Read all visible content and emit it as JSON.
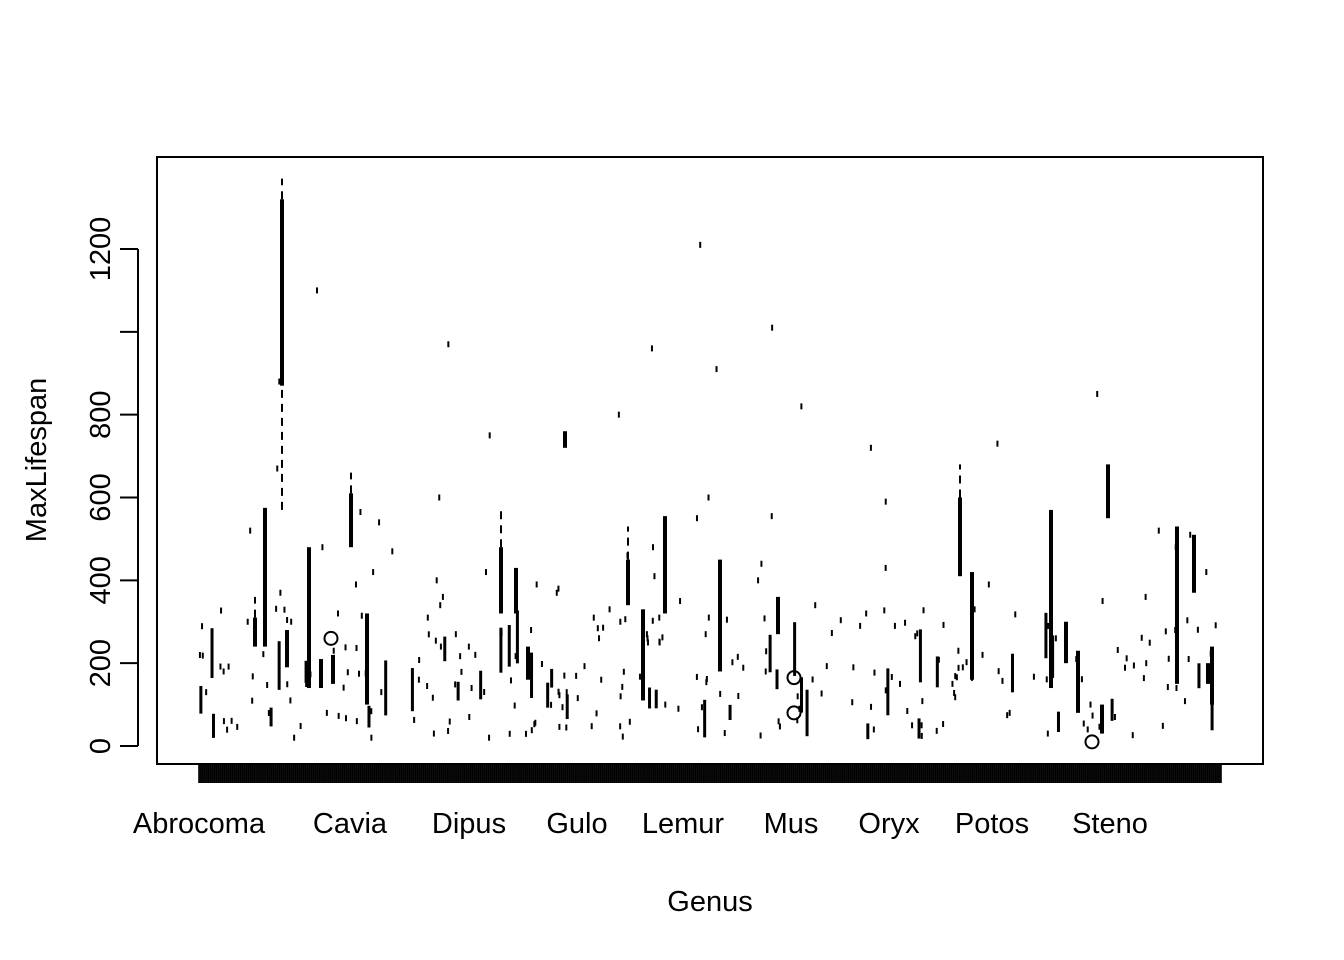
{
  "chart_data": {
    "type": "boxplot",
    "title": "",
    "xlabel": "Genus",
    "ylabel": "MaxLifespan",
    "x_tick_labels": [
      "Abrocoma",
      "Cavia",
      "Dipus",
      "Gulo",
      "Lemur",
      "Mus",
      "Oryx",
      "Potos",
      "Steno"
    ],
    "y_ticks": [
      0,
      200,
      400,
      600,
      800,
      1000,
      1200
    ],
    "y_tick_labels": [
      "0",
      "200",
      "400",
      "600",
      "800",
      "",
      "1200"
    ],
    "ylim": [
      -45,
      1420
    ],
    "grid": false,
    "legend": "none",
    "colors": {
      "ink": "#000000",
      "background": "#ffffff"
    },
    "boxes": [
      {
        "q1": 240,
        "q3": 310,
        "whisker_high": 360
      },
      {
        "q1": 240,
        "q3": 575
      },
      {
        "q1": 870,
        "q3": 1320,
        "whisker_low": 570,
        "whisker_high": 1370
      },
      {
        "q1": 190,
        "q3": 280
      },
      {
        "q1": 140,
        "q3": 480
      },
      {
        "q1": 140,
        "q3": 210
      },
      {
        "q1": 150,
        "q3": 220
      },
      {
        "q1": 480,
        "q3": 610,
        "whisker_high": 660
      },
      {
        "q1": 100,
        "q3": 320
      },
      {
        "q1": 320,
        "q3": 480,
        "whisker_high": 570
      },
      {
        "q1": 320,
        "q3": 430
      },
      {
        "q1": 160,
        "q3": 240
      },
      {
        "q1": 720,
        "q3": 760
      },
      {
        "q1": 340,
        "q3": 450,
        "whisker_high": 530
      },
      {
        "q1": 110,
        "q3": 330
      },
      {
        "q1": 320,
        "q3": 555
      },
      {
        "q1": 180,
        "q3": 450
      },
      {
        "q1": 270,
        "q3": 360
      },
      {
        "q1": 410,
        "q3": 600,
        "whisker_high": 680
      },
      {
        "q1": 160,
        "q3": 420
      },
      {
        "q1": 140,
        "q3": 570
      },
      {
        "q1": 200,
        "q3": 300
      },
      {
        "q1": 550,
        "q3": 680
      },
      {
        "q1": 150,
        "q3": 530
      },
      {
        "q1": 370,
        "q3": 510
      },
      {
        "q1": 150,
        "q3": 200
      },
      {
        "q1": 80,
        "q3": 230
      },
      {
        "q1": 30,
        "q3": 100
      },
      {
        "q1": 100,
        "q3": 240
      }
    ],
    "outliers": [
      {
        "value": 260
      },
      {
        "value": 165
      },
      {
        "value": 80
      },
      {
        "value": 10
      }
    ],
    "scatter_marks": [
      1210,
      1010,
      1100,
      970,
      960,
      910,
      880,
      850,
      820,
      800,
      750,
      730,
      720,
      670,
      600,
      600,
      590,
      565,
      555,
      550,
      540,
      520,
      520,
      510,
      480,
      480,
      480,
      470,
      460,
      440,
      430,
      420,
      420,
      420,
      410,
      400,
      400,
      390,
      390,
      390,
      380,
      370,
      370,
      360,
      360,
      350,
      350,
      340,
      340,
      330,
      330,
      320,
      320,
      310,
      310,
      300,
      300,
      300,
      290,
      290,
      280,
      280,
      270,
      270,
      260,
      260,
      250,
      250,
      240,
      240,
      230,
      230,
      220,
      220,
      210,
      210,
      200,
      200,
      190,
      190,
      180,
      180,
      170,
      170,
      160,
      160,
      150,
      150,
      140,
      140,
      130,
      130,
      120,
      120,
      110,
      110,
      100,
      100,
      90,
      90,
      80,
      80,
      70,
      70,
      60,
      60,
      50,
      50,
      40,
      40,
      30,
      30,
      20
    ]
  }
}
